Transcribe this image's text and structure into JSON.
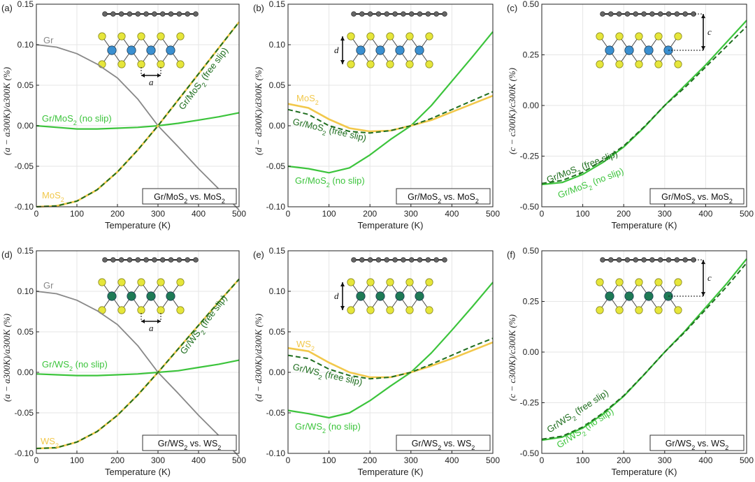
{
  "colors": {
    "gr": "#888888",
    "no_slip": "#3cc43c",
    "free_slip": "#1f6e1f",
    "bulk": "#f2c84b",
    "mo_atom": "#3a8fd0",
    "w_atom": "#1e7a55",
    "s_atom": "#e6e63a",
    "c_atom": "#666666"
  },
  "chart_data": [
    {
      "panel": "(a)",
      "type": "line",
      "xlabel": "Temperature (K)",
      "ylabel": "(a − a300K)/a300K (%)",
      "xlim": [
        0,
        500
      ],
      "ylim": [
        -0.1,
        0.15
      ],
      "xticks": [
        "0",
        "100",
        "200",
        "300",
        "400",
        "500"
      ],
      "yticks": [
        "-0.10",
        "-0.05",
        "0.00",
        "0.05",
        "0.10",
        "0.15"
      ],
      "legend": "Gr/MoS2 vs. MoS2",
      "inset": {
        "metal": "Mo",
        "dim": "a"
      },
      "series": [
        {
          "name": "Gr",
          "role": "gr",
          "x": [
            0,
            50,
            100,
            150,
            200,
            250,
            300,
            350,
            400,
            450,
            500
          ],
          "y": [
            0.1,
            0.097,
            0.089,
            0.076,
            0.059,
            0.033,
            0.0,
            -0.026,
            -0.053,
            -0.078,
            -0.104
          ]
        },
        {
          "name": "Gr/MoS2 (no slip)",
          "role": "no_slip",
          "x": [
            0,
            50,
            100,
            150,
            200,
            250,
            300,
            350,
            400,
            450,
            500
          ],
          "y": [
            0.0,
            -0.002,
            -0.004,
            -0.004,
            -0.003,
            -0.002,
            0.0,
            0.003,
            0.007,
            0.011,
            0.016
          ]
        },
        {
          "name": "MoS2",
          "role": "bulk",
          "x": [
            0,
            50,
            100,
            150,
            200,
            250,
            300,
            350,
            400,
            450,
            500
          ],
          "y": [
            -0.1,
            -0.099,
            -0.093,
            -0.079,
            -0.057,
            -0.03,
            0.0,
            0.032,
            0.064,
            0.096,
            0.128
          ]
        },
        {
          "name": "Gr/MoS2 (free slip)",
          "role": "free_slip",
          "x": [
            0,
            50,
            100,
            150,
            200,
            250,
            300,
            350,
            400,
            450,
            500
          ],
          "y": [
            -0.1,
            -0.099,
            -0.093,
            -0.079,
            -0.057,
            -0.03,
            0.0,
            0.032,
            0.064,
            0.096,
            0.128
          ]
        }
      ]
    },
    {
      "panel": "(b)",
      "type": "line",
      "xlabel": "Temperature (K)",
      "ylabel": "(d − d300K)/d300K (%)",
      "xlim": [
        0,
        500
      ],
      "ylim": [
        -0.1,
        0.15
      ],
      "xticks": [
        "0",
        "100",
        "200",
        "300",
        "400",
        "500"
      ],
      "yticks": [
        "-0.10",
        "-0.05",
        "0.00",
        "0.05",
        "0.10",
        "0.15"
      ],
      "legend": "Gr/MoS2 vs. MoS2",
      "inset": {
        "metal": "Mo",
        "dim": "d"
      },
      "series": [
        {
          "name": "MoS2",
          "role": "bulk",
          "x": [
            0,
            50,
            100,
            150,
            200,
            250,
            300,
            350,
            400,
            450,
            500
          ],
          "y": [
            0.027,
            0.022,
            0.008,
            -0.003,
            -0.007,
            -0.006,
            0.0,
            0.007,
            0.017,
            0.027,
            0.037
          ]
        },
        {
          "name": "Gr/MoS2 (free slip)",
          "role": "free_slip",
          "x": [
            0,
            50,
            100,
            150,
            200,
            250,
            300,
            350,
            400,
            450,
            500
          ],
          "y": [
            0.02,
            0.014,
            0.0,
            -0.007,
            -0.009,
            -0.006,
            0.0,
            0.009,
            0.02,
            0.031,
            0.042
          ]
        },
        {
          "name": "Gr/MoS2 (no slip)",
          "role": "no_slip",
          "x": [
            0,
            50,
            100,
            150,
            200,
            250,
            300,
            350,
            400,
            450,
            500
          ],
          "y": [
            -0.05,
            -0.053,
            -0.058,
            -0.052,
            -0.036,
            -0.017,
            0.0,
            0.025,
            0.055,
            0.085,
            0.116
          ]
        }
      ]
    },
    {
      "panel": "(c)",
      "type": "line",
      "xlabel": "Temperature (K)",
      "ylabel": "(c − c300K)/c300K (%)",
      "xlim": [
        0,
        500
      ],
      "ylim": [
        -0.5,
        0.5
      ],
      "xticks": [
        "0",
        "100",
        "200",
        "300",
        "400",
        "500"
      ],
      "yticks": [
        "-0.50",
        "-0.25",
        "0.00",
        "0.25",
        "0.50"
      ],
      "legend": "Gr/MoS2 vs. MoS2",
      "inset": {
        "metal": "Mo",
        "dim": "c"
      },
      "series": [
        {
          "name": "Gr/MoS2 (free slip)",
          "role": "free_slip",
          "x": [
            0,
            50,
            100,
            150,
            200,
            250,
            300,
            350,
            400,
            450,
            500
          ],
          "y": [
            -0.385,
            -0.37,
            -0.33,
            -0.27,
            -0.2,
            -0.105,
            0.0,
            0.09,
            0.19,
            0.29,
            0.39
          ]
        },
        {
          "name": "Gr/MoS2 (no slip)",
          "role": "no_slip",
          "x": [
            0,
            50,
            100,
            150,
            200,
            250,
            300,
            350,
            400,
            450,
            500
          ],
          "y": [
            -0.39,
            -0.38,
            -0.34,
            -0.28,
            -0.205,
            -0.108,
            0.0,
            0.1,
            0.2,
            0.31,
            0.42
          ]
        }
      ]
    },
    {
      "panel": "(d)",
      "type": "line",
      "xlabel": "Temperature (K)",
      "ylabel": "(a − a300K)/a300K (%)",
      "xlim": [
        0,
        500
      ],
      "ylim": [
        -0.1,
        0.15
      ],
      "xticks": [
        "0",
        "100",
        "200",
        "300",
        "400",
        "500"
      ],
      "yticks": [
        "-0.10",
        "-0.05",
        "0.00",
        "0.05",
        "0.10",
        "0.15"
      ],
      "legend": "Gr/WS2 vs. WS2",
      "inset": {
        "metal": "W",
        "dim": "a"
      },
      "series": [
        {
          "name": "Gr",
          "role": "gr",
          "x": [
            0,
            50,
            100,
            150,
            200,
            250,
            300,
            350,
            400,
            450,
            500
          ],
          "y": [
            0.1,
            0.097,
            0.089,
            0.076,
            0.059,
            0.033,
            0.0,
            -0.026,
            -0.053,
            -0.078,
            -0.104
          ]
        },
        {
          "name": "Gr/WS2 (no slip)",
          "role": "no_slip",
          "x": [
            0,
            50,
            100,
            150,
            200,
            250,
            300,
            350,
            400,
            450,
            500
          ],
          "y": [
            -0.002,
            -0.003,
            -0.004,
            -0.004,
            -0.003,
            -0.002,
            0.0,
            0.002,
            0.006,
            0.01,
            0.015
          ]
        },
        {
          "name": "WS2",
          "role": "bulk",
          "x": [
            0,
            50,
            100,
            150,
            200,
            250,
            300,
            350,
            400,
            450,
            500
          ],
          "y": [
            -0.094,
            -0.093,
            -0.086,
            -0.073,
            -0.053,
            -0.028,
            0.0,
            0.029,
            0.058,
            0.087,
            0.115
          ]
        },
        {
          "name": "Gr/WS2 (free slip)",
          "role": "free_slip",
          "x": [
            0,
            50,
            100,
            150,
            200,
            250,
            300,
            350,
            400,
            450,
            500
          ],
          "y": [
            -0.094,
            -0.093,
            -0.086,
            -0.073,
            -0.053,
            -0.028,
            0.0,
            0.029,
            0.058,
            0.087,
            0.115
          ]
        }
      ]
    },
    {
      "panel": "(e)",
      "type": "line",
      "xlabel": "Temperature (K)",
      "ylabel": "(d − d300K)/d300K (%)",
      "xlim": [
        0,
        500
      ],
      "ylim": [
        -0.1,
        0.15
      ],
      "xticks": [
        "0",
        "100",
        "200",
        "300",
        "400",
        "500"
      ],
      "yticks": [
        "-0.10",
        "-0.05",
        "0.00",
        "0.05",
        "0.10",
        "0.15"
      ],
      "legend": "Gr/WS2 vs. WS2",
      "inset": {
        "metal": "W",
        "dim": "d"
      },
      "series": [
        {
          "name": "WS2",
          "role": "bulk",
          "x": [
            0,
            50,
            100,
            150,
            200,
            250,
            300,
            350,
            400,
            450,
            500
          ],
          "y": [
            0.03,
            0.026,
            0.012,
            0.0,
            -0.006,
            -0.006,
            0.0,
            0.008,
            0.017,
            0.027,
            0.037
          ]
        },
        {
          "name": "Gr/WS2 (free slip)",
          "role": "free_slip",
          "x": [
            0,
            50,
            100,
            150,
            200,
            250,
            300,
            350,
            400,
            450,
            500
          ],
          "y": [
            0.021,
            0.017,
            0.004,
            -0.004,
            -0.008,
            -0.006,
            0.0,
            0.01,
            0.021,
            0.032,
            0.042
          ]
        },
        {
          "name": "Gr/WS2 (no slip)",
          "role": "no_slip",
          "x": [
            0,
            50,
            100,
            150,
            200,
            250,
            300,
            350,
            400,
            450,
            500
          ],
          "y": [
            -0.047,
            -0.051,
            -0.056,
            -0.05,
            -0.035,
            -0.017,
            0.0,
            0.024,
            0.052,
            0.081,
            0.111
          ]
        }
      ]
    },
    {
      "panel": "(f)",
      "type": "line",
      "xlabel": "Temperature (K)",
      "ylabel": "(c − c300K)/c300K (%)",
      "xlim": [
        0,
        500
      ],
      "ylim": [
        -0.5,
        0.5
      ],
      "xticks": [
        "0",
        "100",
        "200",
        "300",
        "400",
        "500"
      ],
      "yticks": [
        "-0.50",
        "-0.25",
        "0.00",
        "0.25",
        "0.50"
      ],
      "legend": "Gr/WS2 vs. WS2",
      "inset": {
        "metal": "W",
        "dim": "c"
      },
      "series": [
        {
          "name": "Gr/WS2 (free slip)",
          "role": "free_slip",
          "x": [
            0,
            50,
            100,
            150,
            200,
            250,
            300,
            350,
            400,
            450,
            500
          ],
          "y": [
            -0.43,
            -0.415,
            -0.37,
            -0.3,
            -0.215,
            -0.11,
            0.0,
            0.1,
            0.21,
            0.32,
            0.44
          ]
        },
        {
          "name": "Gr/WS2 (no slip)",
          "role": "no_slip",
          "x": [
            0,
            50,
            100,
            150,
            200,
            250,
            300,
            350,
            400,
            450,
            500
          ],
          "y": [
            -0.435,
            -0.42,
            -0.375,
            -0.305,
            -0.218,
            -0.111,
            0.0,
            0.105,
            0.22,
            0.335,
            0.46
          ]
        }
      ]
    }
  ]
}
